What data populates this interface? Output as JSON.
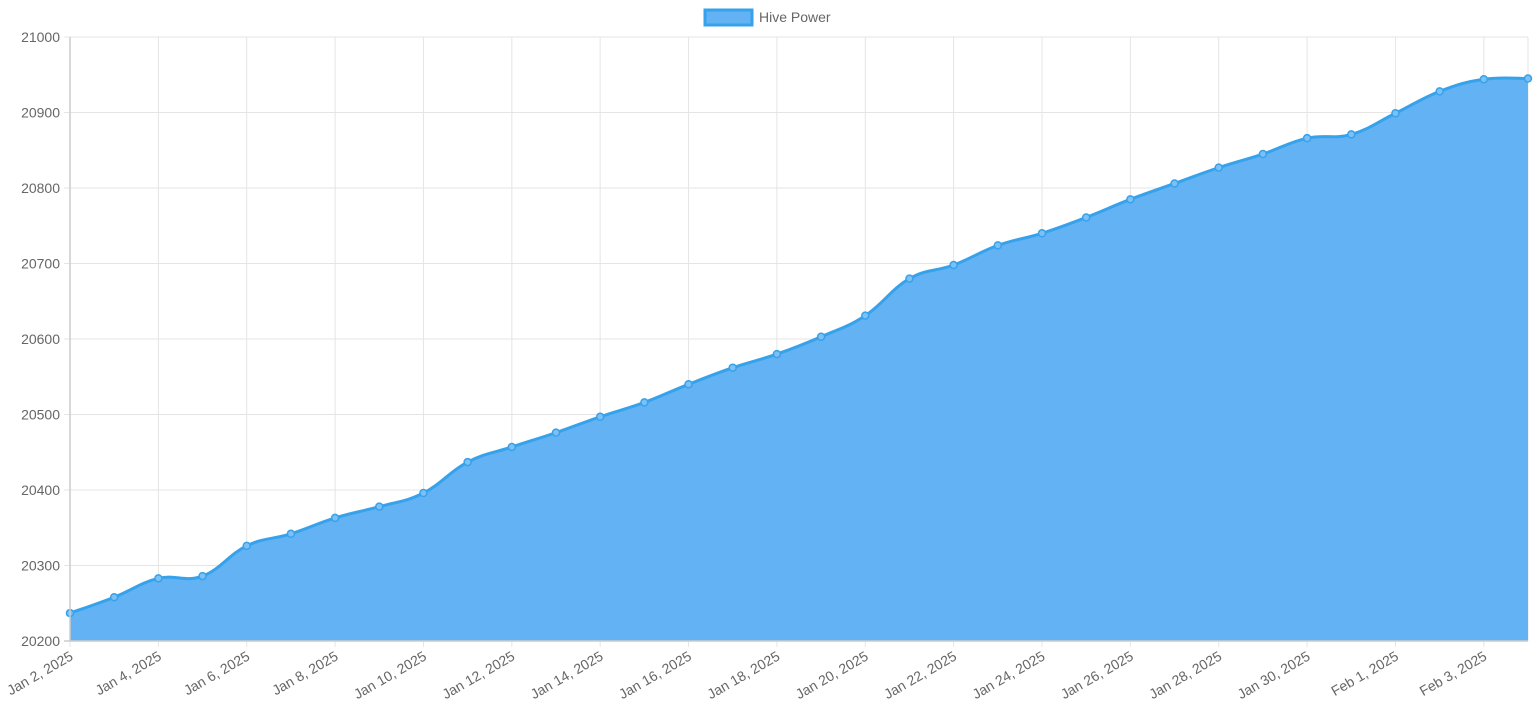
{
  "chart_data": {
    "type": "area",
    "legend": {
      "position": "top",
      "entries": [
        "Hive Power"
      ]
    },
    "series": [
      {
        "name": "Hive Power",
        "color": "#36a2eb",
        "fill": "#62b2f4",
        "x": [
          "Jan 2, 2025",
          "Jan 3, 2025",
          "Jan 4, 2025",
          "Jan 5, 2025",
          "Jan 6, 2025",
          "Jan 7, 2025",
          "Jan 8, 2025",
          "Jan 9, 2025",
          "Jan 10, 2025",
          "Jan 11, 2025",
          "Jan 12, 2025",
          "Jan 13, 2025",
          "Jan 14, 2025",
          "Jan 15, 2025",
          "Jan 16, 2025",
          "Jan 17, 2025",
          "Jan 18, 2025",
          "Jan 19, 2025",
          "Jan 20, 2025",
          "Jan 21, 2025",
          "Jan 22, 2025",
          "Jan 23, 2025",
          "Jan 24, 2025",
          "Jan 25, 2025",
          "Jan 26, 2025",
          "Jan 27, 2025",
          "Jan 28, 2025",
          "Jan 29, 2025",
          "Jan 30, 2025",
          "Jan 31, 2025",
          "Feb 1, 2025",
          "Feb 2, 2025",
          "Feb 3, 2025",
          "Feb 4, 2025"
        ],
        "values": [
          20237,
          20258,
          20283,
          20286,
          20326,
          20342,
          20363,
          20378,
          20396,
          20437,
          20457,
          20476,
          20497,
          20516,
          20540,
          20562,
          20580,
          20603,
          20631,
          20680,
          20698,
          20724,
          20740,
          20761,
          20785,
          20806,
          20827,
          20845,
          20866,
          20871,
          20899,
          20928,
          20944,
          20945
        ]
      }
    ],
    "x_tick_labels": [
      "Jan 2, 2025",
      "Jan 4, 2025",
      "Jan 6, 2025",
      "Jan 8, 2025",
      "Jan 10, 2025",
      "Jan 12, 2025",
      "Jan 14, 2025",
      "Jan 16, 2025",
      "Jan 18, 2025",
      "Jan 20, 2025",
      "Jan 22, 2025",
      "Jan 24, 2025",
      "Jan 26, 2025",
      "Jan 28, 2025",
      "Jan 30, 2025",
      "Feb 1, 2025",
      "Feb 3, 2025"
    ],
    "y_ticks": [
      20200,
      20300,
      20400,
      20500,
      20600,
      20700,
      20800,
      20900,
      21000
    ],
    "ylim": [
      20200,
      21000
    ],
    "grid": true,
    "title": "",
    "xlabel": "",
    "ylabel": ""
  }
}
